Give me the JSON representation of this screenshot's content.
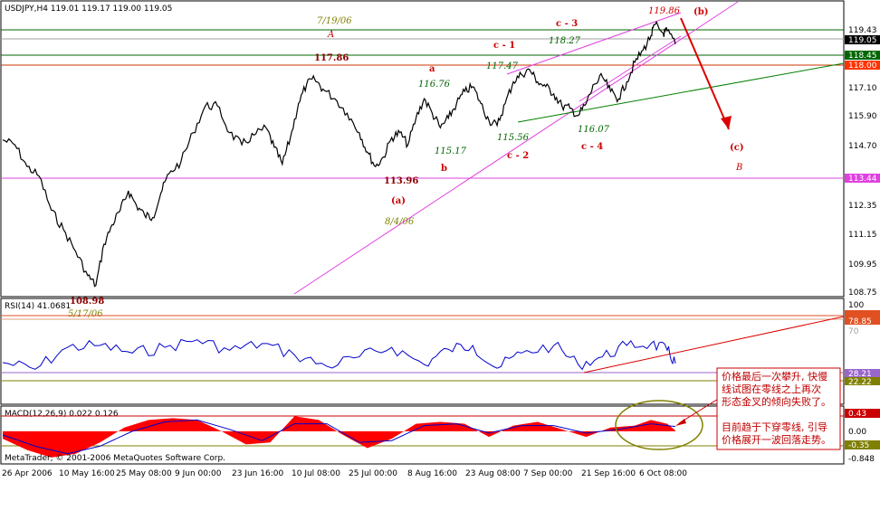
{
  "chart_data": [
    {
      "type": "candlestick",
      "symbol_header": "USDJPY,H4  119.01 119.17 119.00 119.05",
      "x_tick_labels": [
        "26 Apr 2006",
        "10 May 16:00",
        "25 May 08:00",
        "9 Jun 00:00",
        "23 Jun 16:00",
        "10 Jul 08:00",
        "25 Jul 00:00",
        "8 Aug 16:00",
        "23 Aug 08:00",
        "7 Sep 00:00",
        "21 Sep 16:00",
        "6 Oct 08:00"
      ],
      "y_tick_labels": [
        "119.43",
        "119.05",
        "118.45",
        "118.00",
        "117.10",
        "115.90",
        "114.70",
        "113.44",
        "112.35",
        "111.15",
        "109.95",
        "108.75"
      ],
      "ylim": [
        108.75,
        120.2
      ],
      "path": [
        {
          "x": 0,
          "y": 115.1
        },
        {
          "x": 3,
          "y": 114.9
        },
        {
          "x": 6,
          "y": 114.0
        },
        {
          "x": 9,
          "y": 113.6
        },
        {
          "x": 12,
          "y": 112.2
        },
        {
          "x": 15,
          "y": 111.4
        },
        {
          "x": 18,
          "y": 110.5
        },
        {
          "x": 21,
          "y": 109.5
        },
        {
          "x": 23,
          "y": 109.1
        },
        {
          "x": 25,
          "y": 110.8
        },
        {
          "x": 27,
          "y": 111.6
        },
        {
          "x": 29,
          "y": 112.2
        },
        {
          "x": 31,
          "y": 113.0
        },
        {
          "x": 33,
          "y": 112.4
        },
        {
          "x": 35,
          "y": 112.0
        },
        {
          "x": 37,
          "y": 111.9
        },
        {
          "x": 39,
          "y": 112.9
        },
        {
          "x": 41,
          "y": 113.7
        },
        {
          "x": 44,
          "y": 114.2
        },
        {
          "x": 47,
          "y": 115.4
        },
        {
          "x": 50,
          "y": 116.5
        },
        {
          "x": 53,
          "y": 116.5
        },
        {
          "x": 56,
          "y": 115.4
        },
        {
          "x": 59,
          "y": 114.9
        },
        {
          "x": 62,
          "y": 115.3
        },
        {
          "x": 65,
          "y": 115.6
        },
        {
          "x": 67,
          "y": 114.8
        },
        {
          "x": 69,
          "y": 114.1
        },
        {
          "x": 71,
          "y": 115.2
        },
        {
          "x": 73,
          "y": 116.6
        },
        {
          "x": 75,
          "y": 117.4
        },
        {
          "x": 77,
          "y": 117.6
        },
        {
          "x": 79,
          "y": 117.2
        },
        {
          "x": 82,
          "y": 116.8
        },
        {
          "x": 85,
          "y": 116.2
        },
        {
          "x": 88,
          "y": 115.4
        },
        {
          "x": 90,
          "y": 114.6
        },
        {
          "x": 92,
          "y": 114.0
        },
        {
          "x": 94,
          "y": 114.4
        },
        {
          "x": 96,
          "y": 115.2
        },
        {
          "x": 98,
          "y": 115.4
        },
        {
          "x": 100,
          "y": 114.9
        },
        {
          "x": 102,
          "y": 116.0
        },
        {
          "x": 104,
          "y": 116.8
        },
        {
          "x": 106,
          "y": 116.2
        },
        {
          "x": 108,
          "y": 115.6
        },
        {
          "x": 110,
          "y": 116.0
        },
        {
          "x": 112,
          "y": 116.6
        },
        {
          "x": 114,
          "y": 117.1
        },
        {
          "x": 116,
          "y": 117.3
        },
        {
          "x": 118,
          "y": 116.6
        },
        {
          "x": 120,
          "y": 115.9
        },
        {
          "x": 122,
          "y": 115.7
        },
        {
          "x": 124,
          "y": 116.6
        },
        {
          "x": 126,
          "y": 117.5
        },
        {
          "x": 128,
          "y": 117.8
        },
        {
          "x": 130,
          "y": 118.0
        },
        {
          "x": 132,
          "y": 117.5
        },
        {
          "x": 134,
          "y": 117.3
        },
        {
          "x": 136,
          "y": 117.0
        },
        {
          "x": 138,
          "y": 116.5
        },
        {
          "x": 140,
          "y": 116.4
        },
        {
          "x": 142,
          "y": 116.1
        },
        {
          "x": 144,
          "y": 116.6
        },
        {
          "x": 146,
          "y": 117.4
        },
        {
          "x": 148,
          "y": 117.7
        },
        {
          "x": 150,
          "y": 117.1
        },
        {
          "x": 152,
          "y": 116.8
        },
        {
          "x": 154,
          "y": 117.5
        },
        {
          "x": 156,
          "y": 118.3
        },
        {
          "x": 158,
          "y": 118.8
        },
        {
          "x": 160,
          "y": 119.4
        },
        {
          "x": 161,
          "y": 119.86
        },
        {
          "x": 163,
          "y": 119.5
        },
        {
          "x": 164,
          "y": 119.6
        },
        {
          "x": 166,
          "y": 119.05
        }
      ],
      "levels": [
        {
          "value": 119.43,
          "color": "#006600"
        },
        {
          "value": 119.05,
          "color": "#808080"
        },
        {
          "value": 118.45,
          "color": "#006600"
        },
        {
          "value": 118.0,
          "color": "#cc3300"
        },
        {
          "value": 113.44,
          "color": "#e040e0"
        }
      ],
      "price_labels": [
        {
          "text": "117.86",
          "bold": true,
          "color": "#8b0000"
        },
        {
          "text": "113.96",
          "bold": true,
          "color": "#8b0000"
        },
        {
          "text": "108.98",
          "bold": true,
          "color": "#8b0000"
        },
        {
          "text": "116.76",
          "color": "#006600"
        },
        {
          "text": "117.47",
          "color": "#006600"
        },
        {
          "text": "118.27",
          "color": "#006600"
        },
        {
          "text": "115.17",
          "color": "#006600"
        },
        {
          "text": "115.56",
          "color": "#006600"
        },
        {
          "text": "116.07",
          "color": "#006600"
        },
        {
          "text": "119.86",
          "color": "#cc0000"
        }
      ],
      "wave_labels": [
        {
          "text": "a",
          "color": "#cc0000"
        },
        {
          "text": "b",
          "color": "#cc0000"
        },
        {
          "text": "c - 1",
          "color": "#cc0000"
        },
        {
          "text": "c - 2",
          "color": "#cc0000"
        },
        {
          "text": "c - 3",
          "color": "#cc0000"
        },
        {
          "text": "c - 4",
          "color": "#cc0000"
        },
        {
          "text": "(a)",
          "color": "#cc0000"
        },
        {
          "text": "(b)",
          "color": "#cc0000"
        },
        {
          "text": "(c)",
          "color": "#cc0000"
        },
        {
          "text": "A",
          "color": "#cc0000"
        },
        {
          "text": "B",
          "color": "#cc0000"
        }
      ],
      "dates": [
        "7/19/06",
        "8/4/06",
        "5/17/06"
      ]
    },
    {
      "type": "line",
      "header": "RSI(14) 41.0681",
      "y_tick_labels": [
        "100",
        "70",
        "28.21",
        "22.22"
      ],
      "markers": [
        {
          "text": "78.85",
          "color": "#e05020"
        },
        {
          "text": "22.22",
          "color": "#000000"
        },
        {
          "text": "28.21",
          "color": "#9966cc"
        }
      ],
      "ylim": [
        0,
        100
      ],
      "path": [
        {
          "x": 0,
          "y": 42
        },
        {
          "x": 8,
          "y": 35
        },
        {
          "x": 16,
          "y": 58
        },
        {
          "x": 24,
          "y": 60
        },
        {
          "x": 32,
          "y": 52
        },
        {
          "x": 40,
          "y": 58
        },
        {
          "x": 48,
          "y": 66
        },
        {
          "x": 56,
          "y": 55
        },
        {
          "x": 64,
          "y": 62
        },
        {
          "x": 72,
          "y": 50
        },
        {
          "x": 80,
          "y": 38
        },
        {
          "x": 88,
          "y": 48
        },
        {
          "x": 96,
          "y": 58
        },
        {
          "x": 104,
          "y": 40
        },
        {
          "x": 110,
          "y": 56
        },
        {
          "x": 116,
          "y": 60
        },
        {
          "x": 122,
          "y": 36
        },
        {
          "x": 128,
          "y": 52
        },
        {
          "x": 136,
          "y": 60
        },
        {
          "x": 142,
          "y": 40
        },
        {
          "x": 148,
          "y": 48
        },
        {
          "x": 154,
          "y": 60
        },
        {
          "x": 160,
          "y": 62
        },
        {
          "x": 164,
          "y": 55
        },
        {
          "x": 166,
          "y": 41.07
        }
      ]
    },
    {
      "type": "area",
      "header": "MACD(12,26,9) 0.022 0.126",
      "y_tick_labels": [
        "0.43",
        "0.00",
        "-0.35",
        "-0.848"
      ],
      "markers": [
        {
          "text": "0.43",
          "color": "#cc0000"
        },
        {
          "text": "-0.35",
          "color": "#808000"
        }
      ],
      "ylim": [
        -0.848,
        0.6
      ],
      "path": [
        {
          "x": 0,
          "y": -0.2
        },
        {
          "x": 6,
          "y": -0.5
        },
        {
          "x": 12,
          "y": -0.7
        },
        {
          "x": 18,
          "y": -0.6
        },
        {
          "x": 24,
          "y": -0.3
        },
        {
          "x": 30,
          "y": 0.1
        },
        {
          "x": 36,
          "y": 0.3
        },
        {
          "x": 42,
          "y": 0.35
        },
        {
          "x": 48,
          "y": 0.3
        },
        {
          "x": 54,
          "y": 0.0
        },
        {
          "x": 60,
          "y": -0.35
        },
        {
          "x": 66,
          "y": -0.3
        },
        {
          "x": 72,
          "y": 0.4
        },
        {
          "x": 78,
          "y": 0.3
        },
        {
          "x": 84,
          "y": -0.1
        },
        {
          "x": 90,
          "y": -0.45
        },
        {
          "x": 96,
          "y": -0.2
        },
        {
          "x": 102,
          "y": 0.2
        },
        {
          "x": 108,
          "y": 0.25
        },
        {
          "x": 114,
          "y": 0.2
        },
        {
          "x": 120,
          "y": -0.15
        },
        {
          "x": 126,
          "y": 0.15
        },
        {
          "x": 132,
          "y": 0.25
        },
        {
          "x": 138,
          "y": 0.05
        },
        {
          "x": 144,
          "y": -0.15
        },
        {
          "x": 150,
          "y": 0.1
        },
        {
          "x": 156,
          "y": 0.15
        },
        {
          "x": 160,
          "y": 0.3
        },
        {
          "x": 164,
          "y": 0.2
        },
        {
          "x": 166,
          "y": 0.02
        }
      ],
      "signal_path": [
        {
          "x": 0,
          "y": -0.1
        },
        {
          "x": 8,
          "y": -0.4
        },
        {
          "x": 16,
          "y": -0.6
        },
        {
          "x": 24,
          "y": -0.4
        },
        {
          "x": 32,
          "y": 0.0
        },
        {
          "x": 40,
          "y": 0.25
        },
        {
          "x": 48,
          "y": 0.3
        },
        {
          "x": 56,
          "y": 0.05
        },
        {
          "x": 64,
          "y": -0.25
        },
        {
          "x": 72,
          "y": 0.2
        },
        {
          "x": 80,
          "y": 0.2
        },
        {
          "x": 88,
          "y": -0.3
        },
        {
          "x": 96,
          "y": -0.25
        },
        {
          "x": 104,
          "y": 0.15
        },
        {
          "x": 112,
          "y": 0.2
        },
        {
          "x": 120,
          "y": -0.05
        },
        {
          "x": 128,
          "y": 0.15
        },
        {
          "x": 136,
          "y": 0.15
        },
        {
          "x": 144,
          "y": -0.05
        },
        {
          "x": 152,
          "y": 0.05
        },
        {
          "x": 160,
          "y": 0.2
        },
        {
          "x": 166,
          "y": 0.126
        }
      ]
    }
  ],
  "footer": "MetaTrader, © 2001-2006 MetaQuotes Software Corp.",
  "comment_lines": [
    "价格最后一次攀升, 快慢",
    "线试图在零线之上再次",
    "形态金叉的倾向失败了。",
    "",
    "目前趋于下穿零线, 引导",
    "价格展开一波回落走势。"
  ],
  "colors": {
    "accent": "#cc0000",
    "grid_green": "#006600",
    "rsi": "#0000cc",
    "macd_fill": "#ff0000"
  }
}
